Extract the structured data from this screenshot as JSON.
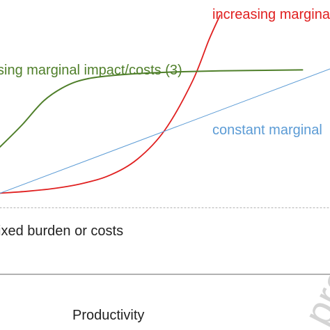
{
  "chart_data": {
    "type": "line",
    "xlabel": "Productivity",
    "colors": {
      "increasing": "#e02020",
      "decreasing": "#4f7f2a",
      "constant": "#5b9bd5",
      "fixed": "#b0b0b0",
      "axis": "#999999",
      "watermark": "#d4d4d4"
    },
    "series": [
      {
        "key": "increasing",
        "name": "increasing marginal",
        "points": [
          [
            0.0,
            0.05
          ],
          [
            0.5,
            0.09
          ],
          [
            1.0,
            0.15
          ],
          [
            1.5,
            0.25
          ],
          [
            2.0,
            0.42
          ],
          [
            2.5,
            0.75
          ],
          [
            3.0,
            1.35
          ],
          [
            3.5,
            2.35
          ],
          [
            3.8,
            3.2
          ],
          [
            4.0,
            3.7
          ]
        ]
      },
      {
        "key": "decreasing",
        "name": "sing marginal impact/costs (3)",
        "points": [
          [
            0.0,
            1.0
          ],
          [
            0.4,
            1.45
          ],
          [
            0.8,
            1.95
          ],
          [
            1.2,
            2.25
          ],
          [
            1.6,
            2.4
          ],
          [
            2.2,
            2.48
          ],
          [
            3.0,
            2.53
          ],
          [
            4.0,
            2.56
          ],
          [
            5.5,
            2.58
          ]
        ]
      },
      {
        "key": "constant",
        "name": "constant marginal",
        "points": [
          [
            0.0,
            0.05
          ],
          [
            6.0,
            2.6
          ]
        ]
      },
      {
        "key": "fixed",
        "name": "ixed burden or costs",
        "points": [
          [
            0.0,
            -0.25
          ],
          [
            6.0,
            -0.25
          ]
        ]
      }
    ],
    "watermark": "proof"
  }
}
